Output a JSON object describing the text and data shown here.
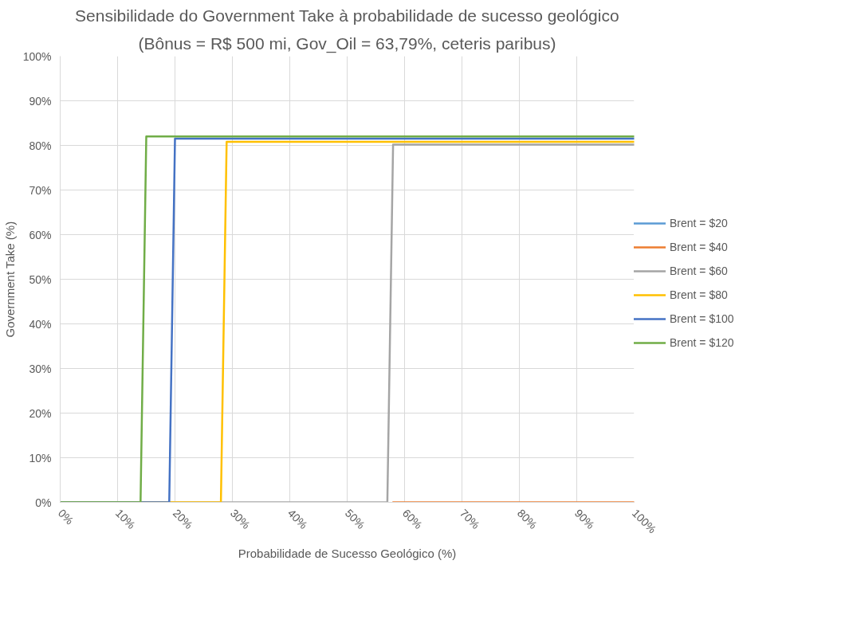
{
  "chart_data": {
    "type": "line",
    "title": "Sensibilidade do Government Take à probabilidade de sucesso geológico",
    "subtitle": "(Bônus = R$ 500 mi, Gov_Oil = 63,79%, ceteris paribus)",
    "xlabel": "Probabilidade de Sucesso Geológico (%)",
    "ylabel": "Government Take (%)",
    "series": [
      {
        "name": "Brent = $20",
        "color": "#5b9bd5"
      },
      {
        "name": "Brent = $40",
        "color": "#ed7d31",
        "x": [
          58,
          100
        ],
        "values": [
          0,
          0
        ]
      },
      {
        "name": "Brent = $60",
        "color": "#a5a5a5",
        "x": [
          0,
          57,
          58,
          100
        ],
        "values": [
          0,
          0,
          80.2,
          80.2
        ]
      },
      {
        "name": "Brent = $80",
        "color": "#ffc000",
        "x": [
          0,
          28,
          29,
          100
        ],
        "values": [
          0,
          0,
          80.8,
          80.8
        ]
      },
      {
        "name": "Brent = $100",
        "color": "#4472c4",
        "x": [
          0,
          19,
          20,
          100
        ],
        "values": [
          0,
          0,
          81.5,
          81.5
        ]
      },
      {
        "name": "Brent = $120",
        "color": "#70ad47",
        "x": [
          0,
          14,
          15,
          100
        ],
        "values": [
          0,
          0,
          82.0,
          82.0
        ]
      }
    ],
    "xlim": [
      0,
      100
    ],
    "ylim": [
      0,
      100
    ],
    "xticks": [
      {
        "value": 0,
        "label": "0%"
      },
      {
        "value": 10,
        "label": "10%"
      },
      {
        "value": 20,
        "label": "20%"
      },
      {
        "value": 30,
        "label": "30%"
      },
      {
        "value": 40,
        "label": "40%"
      },
      {
        "value": 50,
        "label": "50%"
      },
      {
        "value": 60,
        "label": "60%"
      },
      {
        "value": 70,
        "label": "70%"
      },
      {
        "value": 80,
        "label": "80%"
      },
      {
        "value": 90,
        "label": "90%"
      },
      {
        "value": 100,
        "label": "100%"
      }
    ],
    "yticks": [
      {
        "value": 0,
        "label": "0%"
      },
      {
        "value": 10,
        "label": "10%"
      },
      {
        "value": 20,
        "label": "20%"
      },
      {
        "value": 30,
        "label": "30%"
      },
      {
        "value": 40,
        "label": "40%"
      },
      {
        "value": 50,
        "label": "50%"
      },
      {
        "value": 60,
        "label": "60%"
      },
      {
        "value": 70,
        "label": "70%"
      },
      {
        "value": 80,
        "label": "80%"
      },
      {
        "value": 90,
        "label": "90%"
      },
      {
        "value": 100,
        "label": "100%"
      }
    ],
    "grid": true,
    "legend": "right",
    "marker": "none",
    "line_style": "solid"
  }
}
